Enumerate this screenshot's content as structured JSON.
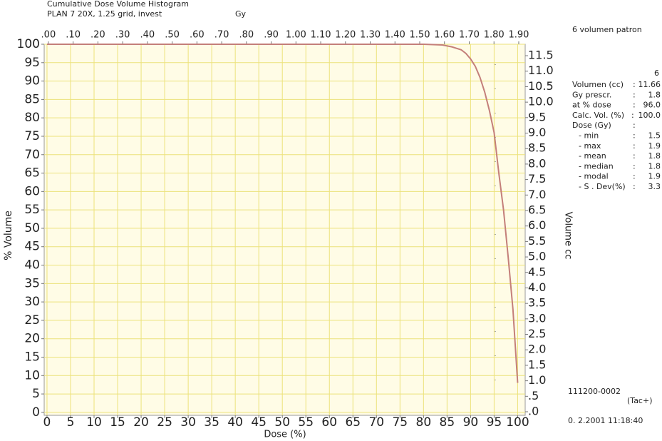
{
  "chart_data": {
    "type": "line",
    "title": "Cumulative Dose Volume Histogram",
    "subtitle": "PLAN 7 20X, 1.25 grid, invest",
    "x2_unit": "Gy",
    "xlabel": "Dose (%)",
    "ylabel": "% Volume",
    "y2label": "Volume cc",
    "x": [
      0,
      80,
      84,
      86,
      88,
      89,
      90,
      91,
      92,
      93,
      94,
      95,
      96,
      97,
      98,
      99,
      99.5,
      100
    ],
    "series": [
      {
        "color": "#c47f7a",
        "values": [
          100,
          100,
          99.8,
          99.3,
          98.5,
          97.5,
          96,
          94,
          91,
          87,
          82,
          76,
          65,
          55,
          42,
          28,
          18,
          8
        ]
      }
    ],
    "xlim": [
      -0.6,
      101.6
    ],
    "xticks": [
      0,
      5,
      10,
      15,
      20,
      25,
      30,
      35,
      40,
      45,
      50,
      55,
      60,
      65,
      70,
      75,
      80,
      85,
      90,
      95,
      100
    ],
    "x2lim": [
      -0.017,
      1.926
    ],
    "x2ticks": [
      {
        "value": 0,
        "label": ".00"
      },
      {
        "value": 0.1,
        "label": ".10"
      },
      {
        "value": 0.2,
        "label": ".20"
      },
      {
        "value": 0.3,
        "label": ".30"
      },
      {
        "value": 0.4,
        "label": ".40"
      },
      {
        "value": 0.5,
        "label": ".50"
      },
      {
        "value": 0.6,
        "label": ".60"
      },
      {
        "value": 0.7,
        "label": ".70"
      },
      {
        "value": 0.8,
        "label": ".80"
      },
      {
        "value": 0.9,
        "label": ".90"
      },
      {
        "value": 1,
        "label": "1.00"
      },
      {
        "value": 1.1,
        "label": "1.10"
      },
      {
        "value": 1.2,
        "label": "1.20"
      },
      {
        "value": 1.3,
        "label": "1.30"
      },
      {
        "value": 1.4,
        "label": "1.40"
      },
      {
        "value": 1.5,
        "label": "1.50"
      },
      {
        "value": 1.6,
        "label": "1.60"
      },
      {
        "value": 1.7,
        "label": "1.70"
      },
      {
        "value": 1.8,
        "label": "1.80"
      },
      {
        "value": 1.9,
        "label": "1.90"
      }
    ],
    "ylim": [
      -0.8,
      100
    ],
    "yticks": [
      0,
      5,
      10,
      15,
      20,
      25,
      30,
      35,
      40,
      45,
      50,
      55,
      60,
      65,
      70,
      75,
      80,
      85,
      90,
      95,
      100
    ],
    "y2lim": [
      -0.115,
      11.87
    ],
    "y2ticks": [
      {
        "value": 0,
        "label": ".0"
      },
      {
        "value": 0.5,
        "label": ".5"
      },
      {
        "value": 1,
        "label": "1.0"
      },
      1.5,
      {
        "value": 2,
        "label": "2.0"
      },
      2.5,
      {
        "value": 3,
        "label": "3.0"
      },
      3.5,
      {
        "value": 4,
        "label": "4.0"
      },
      4.5,
      {
        "value": 5,
        "label": "5.0"
      },
      5.5,
      {
        "value": 6,
        "label": "6.0"
      },
      6.5,
      {
        "value": 7,
        "label": "7.0"
      },
      7.5,
      {
        "value": 8,
        "label": "8.0"
      },
      8.5,
      {
        "value": 9,
        "label": "9.0"
      },
      9.5,
      {
        "value": 10,
        "label": "10.0"
      },
      10.5,
      {
        "value": 11,
        "label": "11.0"
      },
      11.5
    ],
    "grid": true
  },
  "panel": {
    "heading": "6 volumen patron",
    "number": "6",
    "rows": [
      [
        "Volumen (cc)",
        "11.66"
      ],
      [
        "Gy prescr.",
        "1.8"
      ],
      [
        "at  % dose",
        "96.0"
      ],
      [
        "Calc. Vol. (%)",
        "100.0"
      ],
      [
        "Dose  (Gy)"
      ],
      [
        "- min",
        "1.5"
      ],
      [
        "- max",
        "1.9"
      ],
      [
        "- mean",
        "1.8"
      ],
      [
        "- median",
        "1.8"
      ],
      [
        "- modal",
        "1.9"
      ],
      [
        "- S . Dev(%)",
        "3.3"
      ]
    ],
    "id": "111200-0002",
    "tag": "(Tac+)",
    "date": "0. 2.2001  11:18:40"
  }
}
